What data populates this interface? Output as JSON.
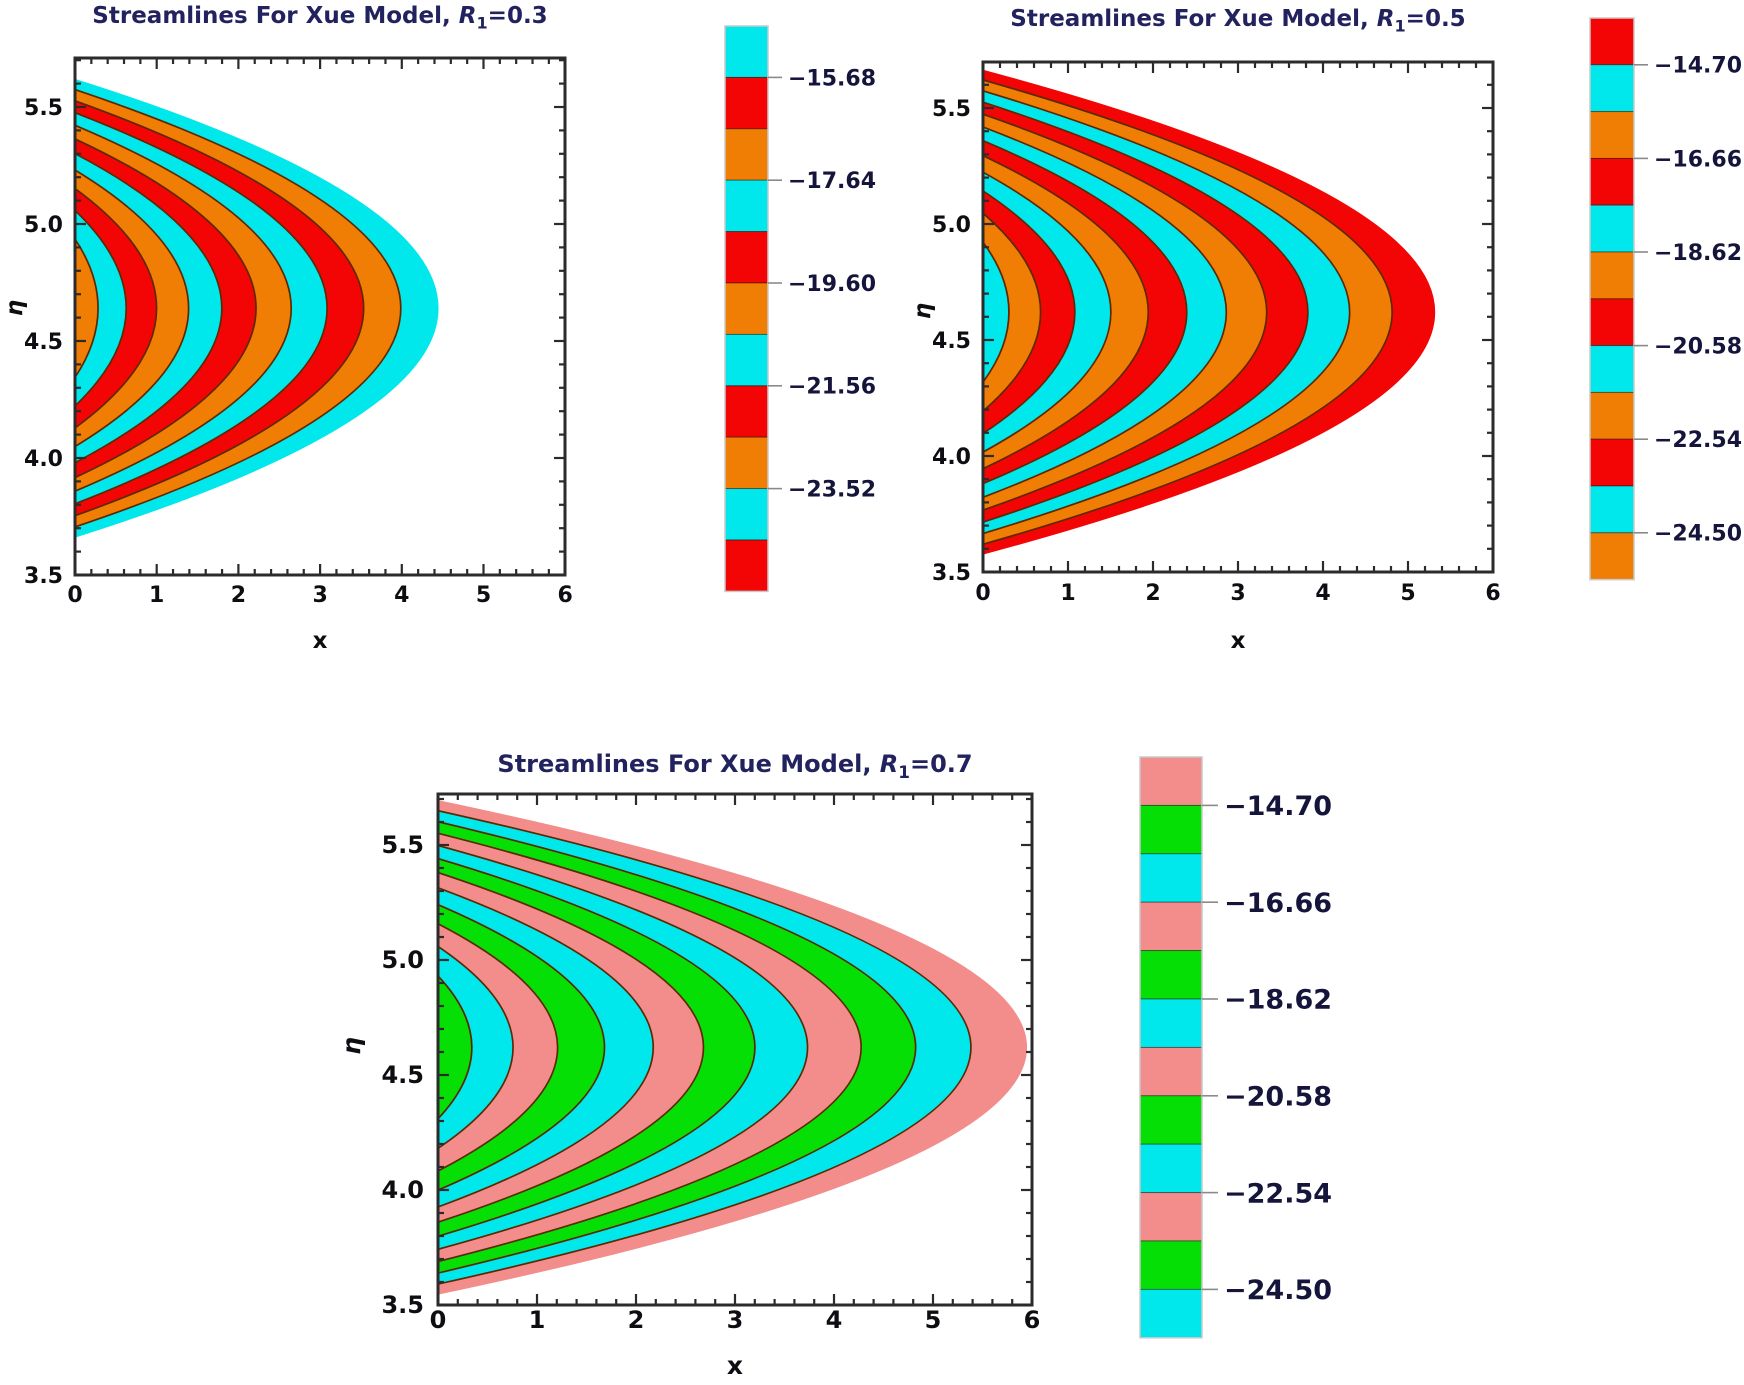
{
  "colors": {
    "cyan": "#00E8EC",
    "red": "#F40505",
    "orange": "#F07D04",
    "pink": "#F28D8B",
    "green": "#06DF06",
    "edge": "#5E2803",
    "frame": "#2B2B2B",
    "tick_text": "#0D0D12",
    "title_text": "#22225F",
    "colorbar_label_text": "#15153C"
  },
  "plots": [
    {
      "title": {
        "prefix": "Streamlines For Xue Model, ",
        "var": "R",
        "sub": "1",
        "value": "=0.3"
      },
      "x_label": "x",
      "y_label": "η",
      "x_ticks": [
        "0",
        "1",
        "2",
        "3",
        "4",
        "5",
        "6"
      ],
      "y_ticks": [
        "5.5",
        "5.0",
        "4.5",
        "4.0",
        "3.5"
      ],
      "colorbar": {
        "segments": [
          "cyan",
          "red",
          "orange",
          "cyan",
          "red",
          "orange",
          "cyan",
          "red",
          "orange",
          "cyan",
          "red"
        ],
        "labels": [
          "−15.68",
          "−17.64",
          "−19.60",
          "−21.56",
          "−23.52"
        ],
        "label_boundaries": [
          1,
          3,
          5,
          7,
          9
        ]
      }
    },
    {
      "title": {
        "prefix": "Streamlines For Xue Model, ",
        "var": "R",
        "sub": "1",
        "value": "=0.5"
      },
      "x_label": "x",
      "y_label": "η",
      "x_ticks": [
        "0",
        "1",
        "2",
        "3",
        "4",
        "5",
        "6"
      ],
      "y_ticks": [
        "5.5",
        "5.0",
        "4.5",
        "4.0",
        "3.5"
      ],
      "colorbar": {
        "segments": [
          "red",
          "cyan",
          "orange",
          "red",
          "cyan",
          "orange",
          "red",
          "cyan",
          "orange",
          "red",
          "cyan",
          "orange"
        ],
        "labels": [
          "−14.70",
          "−16.66",
          "−18.62",
          "−20.58",
          "−22.54",
          "−24.50"
        ],
        "label_boundaries": [
          1,
          3,
          5,
          7,
          9,
          11
        ]
      }
    },
    {
      "title": {
        "prefix": "Streamlines For Xue Model, ",
        "var": "R",
        "sub": "1",
        "value": "=0.7"
      },
      "x_label": "x",
      "y_label": "η",
      "x_ticks": [
        "0",
        "1",
        "2",
        "3",
        "4",
        "5",
        "6"
      ],
      "y_ticks": [
        "5.5",
        "5.0",
        "4.5",
        "4.0",
        "3.5"
      ],
      "colorbar": {
        "segments": [
          "pink",
          "green",
          "cyan",
          "pink",
          "green",
          "cyan",
          "pink",
          "green",
          "cyan",
          "pink",
          "green",
          "cyan"
        ],
        "labels": [
          "−14.70",
          "−16.66",
          "−18.62",
          "−20.58",
          "−22.54",
          "−24.50"
        ],
        "label_boundaries": [
          1,
          3,
          5,
          7,
          9,
          11
        ]
      }
    }
  ],
  "chart_data": [
    {
      "type": "contour",
      "title": "Streamlines For Xue Model, R1=0.3",
      "xlabel": "x",
      "ylabel": "η",
      "xlim": [
        0,
        6
      ],
      "ylim": [
        3.5,
        5.71
      ],
      "grid": false,
      "legend_position": "right-colorbar",
      "colorbar_tick_values": [
        -15.68,
        -17.64,
        -19.6,
        -21.56,
        -23.52
      ],
      "contour_interval": 0.98,
      "n_bands": 11,
      "colorbar_segments_top_to_bottom": [
        "cyan",
        "red",
        "orange",
        "cyan",
        "red",
        "orange",
        "cyan",
        "red",
        "orange",
        "cyan",
        "red"
      ],
      "band_colors_outer_to_inner": [
        "cyan",
        "orange",
        "red",
        "cyan",
        "orange",
        "red",
        "cyan",
        "orange",
        "red",
        "cyan",
        "orange"
      ],
      "stream_center_eta": 4.64,
      "outermost_extent_x": 4.45,
      "outermost_eta_intercepts": [
        3.66,
        5.62
      ]
    },
    {
      "type": "contour",
      "title": "Streamlines For Xue Model, R1=0.5",
      "xlabel": "x",
      "ylabel": "η",
      "xlim": [
        0,
        6
      ],
      "ylim": [
        3.5,
        5.7
      ],
      "grid": false,
      "legend_position": "right-colorbar",
      "colorbar_tick_values": [
        -14.7,
        -16.66,
        -18.62,
        -20.58,
        -22.54,
        -24.5
      ],
      "contour_interval": 0.98,
      "n_bands": 12,
      "colorbar_segments_top_to_bottom": [
        "red",
        "cyan",
        "orange",
        "red",
        "cyan",
        "orange",
        "red",
        "cyan",
        "orange",
        "red",
        "cyan",
        "orange"
      ],
      "band_colors_outer_to_inner": [
        "red",
        "orange",
        "cyan",
        "red",
        "orange",
        "cyan",
        "red",
        "orange",
        "cyan",
        "red",
        "orange",
        "cyan"
      ],
      "stream_center_eta": 4.62,
      "outermost_extent_x": 5.32,
      "outermost_eta_intercepts": [
        3.58,
        5.67
      ]
    },
    {
      "type": "contour",
      "title": "Streamlines For Xue Model, R1=0.7",
      "xlabel": "x",
      "ylabel": "η",
      "xlim": [
        0,
        6
      ],
      "ylim": [
        3.5,
        5.72
      ],
      "grid": false,
      "legend_position": "right-colorbar",
      "colorbar_tick_values": [
        -14.7,
        -16.66,
        -18.62,
        -20.58,
        -22.54,
        -24.5
      ],
      "contour_interval": 0.98,
      "n_bands": 12,
      "colorbar_segments_top_to_bottom": [
        "pink",
        "green",
        "cyan",
        "pink",
        "green",
        "cyan",
        "pink",
        "green",
        "cyan",
        "pink",
        "green",
        "cyan"
      ],
      "band_colors_outer_to_inner": [
        "pink",
        "cyan",
        "green",
        "pink",
        "cyan",
        "green",
        "pink",
        "cyan",
        "green",
        "pink",
        "cyan",
        "green"
      ],
      "stream_center_eta": 4.62,
      "outermost_extent_x": 5.95,
      "outermost_eta_intercepts": [
        3.55,
        5.7
      ]
    }
  ]
}
